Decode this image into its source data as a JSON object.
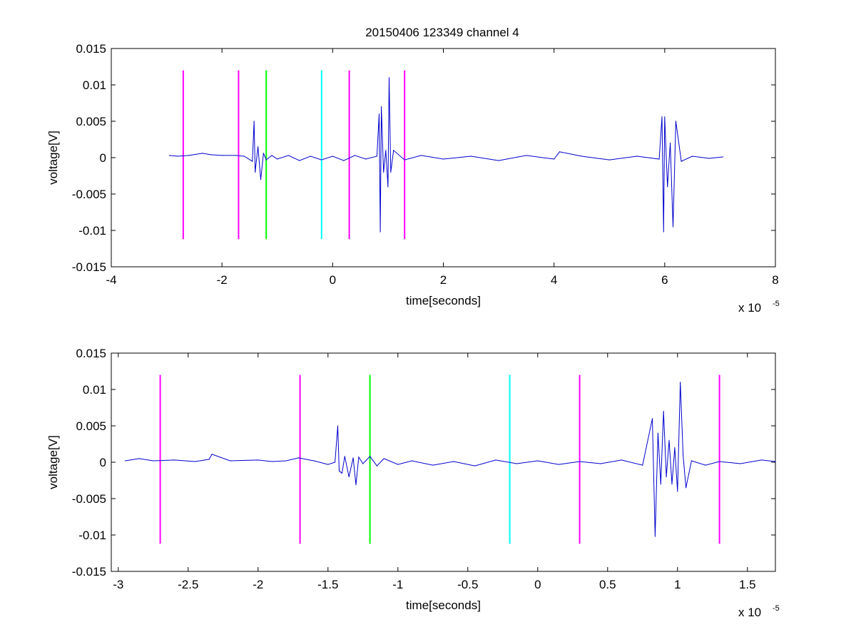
{
  "figure": {
    "title": "20150406 123349 channel 4"
  },
  "chart_data": [
    {
      "type": "line",
      "title": "20150406 123349 channel 4",
      "xlabel": "time[seconds]",
      "ylabel": "voltage[V]",
      "x_exponent_label": "x 10",
      "x_exponent": "-5",
      "xlim": [
        -4,
        8
      ],
      "ylim": [
        -0.015,
        0.015
      ],
      "x_ticks": [
        -4,
        -2,
        0,
        2,
        4,
        6,
        8
      ],
      "x_tick_labels": [
        "-4",
        "-2",
        "0",
        "2",
        "4",
        "6",
        "8"
      ],
      "y_ticks": [
        -0.015,
        -0.01,
        -0.005,
        0,
        0.005,
        0.01,
        0.015
      ],
      "y_tick_labels": [
        "-0.015",
        "-0.01",
        "-0.005",
        "0",
        "0.005",
        "0.01",
        "0.015"
      ],
      "grid": false,
      "series": [
        {
          "color": "#0000cc",
          "x": [
            -2.95,
            -2.8,
            -2.6,
            -2.35,
            -2.2,
            -2.0,
            -1.75,
            -1.6,
            -1.45,
            -1.42,
            -1.4,
            -1.35,
            -1.3,
            -1.25,
            -1.2,
            -1.1,
            -1.0,
            -0.8,
            -0.6,
            -0.4,
            -0.2,
            0.0,
            0.2,
            0.4,
            0.6,
            0.8,
            0.84,
            0.86,
            0.88,
            0.92,
            0.96,
            1.0,
            1.02,
            1.05,
            1.1,
            1.3,
            1.6,
            2.0,
            2.5,
            3.0,
            3.5,
            4.0,
            4.1,
            4.5,
            5.0,
            5.5,
            5.9,
            5.95,
            5.98,
            6.0,
            6.05,
            6.1,
            6.15,
            6.2,
            6.3,
            6.5,
            6.8,
            7.05
          ],
          "y": [
            0.0003,
            0.0002,
            0.0003,
            0.0006,
            0.0004,
            0.0003,
            0.0003,
            0.0002,
            -0.0005,
            0.005,
            -0.002,
            0.0015,
            -0.003,
            0.0006,
            -0.0003,
            0.0003,
            -0.0002,
            0.0003,
            -0.0004,
            0.0002,
            -0.0003,
            0.0002,
            -0.0004,
            0.0003,
            -0.0002,
            0.0002,
            0.006,
            -0.0102,
            0.007,
            -0.002,
            0.001,
            -0.004,
            0.011,
            -0.002,
            0.001,
            -0.0003,
            0.0003,
            -0.0002,
            0.0002,
            -0.0004,
            0.0003,
            -0.0002,
            0.0008,
            0.0002,
            -0.0003,
            0.0002,
            -0.0002,
            0.0056,
            -0.0102,
            0.0056,
            -0.004,
            0.002,
            -0.0095,
            0.005,
            -0.0005,
            0.0002,
            -0.0001,
            0.0001
          ]
        }
      ],
      "markers": [
        {
          "x": -2.7,
          "color": "#ff00ff"
        },
        {
          "x": -1.7,
          "color": "#ff00ff"
        },
        {
          "x": -1.2,
          "color": "#00ff00"
        },
        {
          "x": -0.2,
          "color": "#00ffff"
        },
        {
          "x": 0.3,
          "color": "#ff00ff"
        },
        {
          "x": 1.3,
          "color": "#ff00ff"
        }
      ],
      "marker_range": [
        -0.0112,
        0.012
      ]
    },
    {
      "type": "line",
      "xlabel": "time[seconds]",
      "ylabel": "voltage[V]",
      "x_exponent_label": "x 10",
      "x_exponent": "-5",
      "xlim": [
        -3.05,
        1.7
      ],
      "ylim": [
        -0.015,
        0.015
      ],
      "x_ticks": [
        -3,
        -2.5,
        -2,
        -1.5,
        -1,
        -0.5,
        0,
        0.5,
        1,
        1.5
      ],
      "x_tick_labels": [
        "-3",
        "-2.5",
        "-2",
        "-1.5",
        "-1",
        "-0.5",
        "0",
        "0.5",
        "1",
        "1.5"
      ],
      "y_ticks": [
        -0.015,
        -0.01,
        -0.005,
        0,
        0.005,
        0.01,
        0.015
      ],
      "y_tick_labels": [
        "-0.015",
        "-0.01",
        "-0.005",
        "0",
        "0.005",
        "0.01",
        "0.015"
      ],
      "grid": false,
      "series": [
        {
          "color": "#0000cc",
          "x": [
            -2.95,
            -2.85,
            -2.75,
            -2.6,
            -2.45,
            -2.35,
            -2.33,
            -2.2,
            -2.0,
            -1.9,
            -1.8,
            -1.71,
            -1.6,
            -1.5,
            -1.45,
            -1.43,
            -1.42,
            -1.4,
            -1.38,
            -1.35,
            -1.32,
            -1.3,
            -1.28,
            -1.25,
            -1.2,
            -1.15,
            -1.1,
            -1.0,
            -0.9,
            -0.75,
            -0.6,
            -0.45,
            -0.3,
            -0.15,
            0.0,
            0.15,
            0.3,
            0.45,
            0.6,
            0.75,
            0.82,
            0.84,
            0.86,
            0.88,
            0.9,
            0.92,
            0.94,
            0.96,
            0.98,
            1.0,
            1.02,
            1.04,
            1.06,
            1.1,
            1.2,
            1.3,
            1.45,
            1.6,
            1.7
          ],
          "y": [
            0.0002,
            0.0005,
            0.0002,
            0.0003,
            0.0001,
            0.0004,
            0.0011,
            0.0002,
            0.0003,
            0.0001,
            0.0002,
            0.0006,
            0.0002,
            -0.0003,
            0.0,
            0.005,
            -0.0012,
            -0.0015,
            0.0008,
            -0.002,
            0.0006,
            -0.0031,
            0.0007,
            -0.0002,
            0.0008,
            -0.0005,
            0.0005,
            -0.0003,
            0.0002,
            -0.0004,
            0.0001,
            -0.0005,
            0.0003,
            -0.0002,
            0.0002,
            -0.0003,
            0.0001,
            -0.0002,
            0.0003,
            -0.0004,
            0.006,
            -0.0102,
            0.004,
            -0.003,
            0.007,
            -0.002,
            0.003,
            -0.003,
            0.002,
            -0.004,
            0.011,
            0.001,
            -0.0035,
            0.0002,
            -0.0004,
            0.0001,
            -0.0002,
            0.0003,
            0.0001
          ]
        }
      ],
      "markers": [
        {
          "x": -2.7,
          "color": "#ff00ff"
        },
        {
          "x": -1.7,
          "color": "#ff00ff"
        },
        {
          "x": -1.2,
          "color": "#00ff00"
        },
        {
          "x": -0.2,
          "color": "#00ffff"
        },
        {
          "x": 0.3,
          "color": "#ff00ff"
        },
        {
          "x": 1.3,
          "color": "#ff00ff"
        }
      ],
      "marker_range": [
        -0.0112,
        0.012
      ]
    }
  ]
}
